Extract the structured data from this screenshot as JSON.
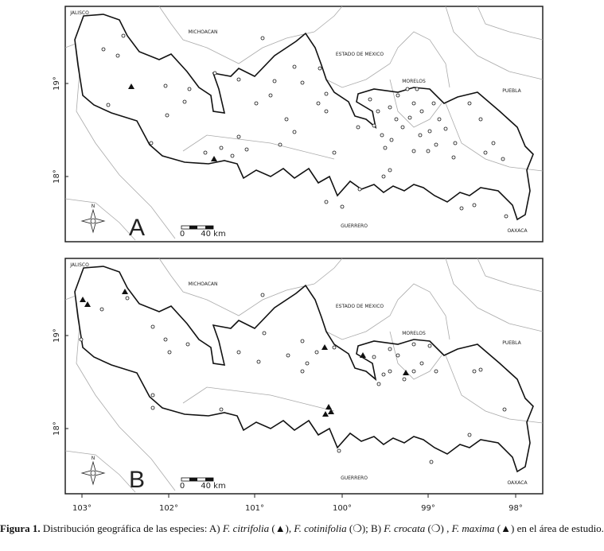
{
  "panels": [
    {
      "letter": "A",
      "north": "N",
      "scale": [
        "0",
        "40 km"
      ],
      "lat_ticks": [
        "19°",
        "18°"
      ],
      "labels": [
        "JALISCO",
        "MICHOACAN",
        "ESTADO DE MEXICO",
        "MORELOS",
        "PUEBLA",
        "GUERRERO",
        "OAXACA"
      ]
    },
    {
      "letter": "B",
      "north": "N",
      "scale": [
        "0",
        "40 km"
      ],
      "lat_ticks": [
        "19°",
        "18°"
      ],
      "labels": [
        "JALISCO",
        "MICHOACAN",
        "ESTADO DE MEXICO",
        "MORELOS",
        "PUEBLA",
        "GUERRERO",
        "OAXACA"
      ]
    }
  ],
  "lon_ticks": [
    "103°",
    "102°",
    "101°",
    "100°",
    "99°",
    "98°"
  ],
  "caption": {
    "label": "Figura 1.",
    "parts": [
      " Distribución geográfica de las especies: A) ",
      "F. citrifolia",
      " (▲), ",
      "F. cotinifolia",
      " (❍); B) ",
      "F. crocata",
      " (❍) , ",
      "F. maxima",
      " (▲) en el área de estudio."
    ]
  }
}
